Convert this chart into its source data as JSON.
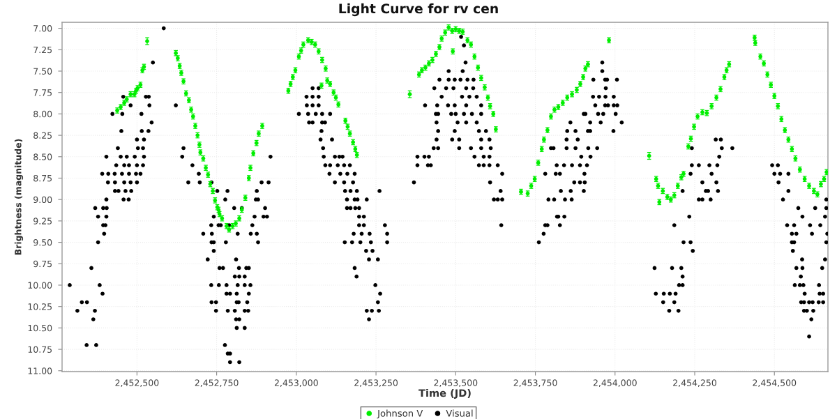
{
  "chart_data": {
    "type": "scatter",
    "title": "Light Curve for rv cen",
    "xlabel": "Time (JD)",
    "ylabel": "Brightness (magnitude)",
    "xlim": [
      2452265,
      2454668
    ],
    "ylim": [
      11.01,
      6.93
    ],
    "xticks": [
      {
        "value": 2452500,
        "label": "2,452,500"
      },
      {
        "value": 2452750,
        "label": "2,452,750"
      },
      {
        "value": 2453000,
        "label": "2,453,000"
      },
      {
        "value": 2453250,
        "label": "2,453,250"
      },
      {
        "value": 2453500,
        "label": "2,453,500"
      },
      {
        "value": 2453750,
        "label": "2,453,750"
      },
      {
        "value": 2454000,
        "label": "2,454,000"
      },
      {
        "value": 2454250,
        "label": "2,454,250"
      },
      {
        "value": 2454500,
        "label": "2,454,500"
      }
    ],
    "yticks": [
      {
        "value": 7.0,
        "label": "7.00"
      },
      {
        "value": 7.25,
        "label": "7.25"
      },
      {
        "value": 7.5,
        "label": "7.50"
      },
      {
        "value": 7.75,
        "label": "7.75"
      },
      {
        "value": 8.0,
        "label": "8.00"
      },
      {
        "value": 8.25,
        "label": "8.25"
      },
      {
        "value": 8.5,
        "label": "8.50"
      },
      {
        "value": 8.75,
        "label": "8.75"
      },
      {
        "value": 9.0,
        "label": "9.00"
      },
      {
        "value": 9.25,
        "label": "9.25"
      },
      {
        "value": 9.5,
        "label": "9.50"
      },
      {
        "value": 9.75,
        "label": "9.75"
      },
      {
        "value": 10.0,
        "label": "10.00"
      },
      {
        "value": 10.25,
        "label": "10.25"
      },
      {
        "value": 10.5,
        "label": "10.50"
      },
      {
        "value": 10.75,
        "label": "10.75"
      },
      {
        "value": 11.0,
        "label": "11.00"
      }
    ],
    "grid": true,
    "legend": "bottom",
    "marker": "circle",
    "series": [
      {
        "name": "Johnson V",
        "color": "#00ee00",
        "x": [
          2452438,
          2452449,
          2452460,
          2452468,
          2452480,
          2452492,
          2452497,
          2452502,
          2452511,
          2452517,
          2452522,
          2452532,
          2452622,
          2452628,
          2452634,
          2452639,
          2452646,
          2452654,
          2452663,
          2452670,
          2452676,
          2452683,
          2452690,
          2452696,
          2452699,
          2452708,
          2452716,
          2452723,
          2452730,
          2452738,
          2452745,
          2452752,
          2452756,
          2452759,
          2452767,
          2452781,
          2452789,
          2452800,
          2452810,
          2452821,
          2452829,
          2452840,
          2452851,
          2452856,
          2452865,
          2452875,
          2452882,
          2452893,
          2452975,
          2452982,
          2452989,
          2452997,
          2453008,
          2453015,
          2453022,
          2453037,
          2453048,
          2453059,
          2453070,
          2453079,
          2453081,
          2453092,
          2453097,
          2453106,
          2453117,
          2453124,
          2453132,
          2453154,
          2453161,
          2453168,
          2453178,
          2453185,
          2453190,
          2453356,
          2453385,
          2453394,
          2453405,
          2453416,
          2453427,
          2453438,
          2453449,
          2453456,
          2453467,
          2453478,
          2453489,
          2453491,
          2453500,
          2453511,
          2453522,
          2453537,
          2453548,
          2453559,
          2453570,
          2453580,
          2453591,
          2453601,
          2453608,
          2453618,
          2453626,
          2453705,
          2453726,
          2453737,
          2453748,
          2453759,
          2453770,
          2453777,
          2453788,
          2453799,
          2453810,
          2453822,
          2453836,
          2453850,
          2453865,
          2453880,
          2453891,
          2453900,
          2453907,
          2453915,
          2453981,
          2454107,
          2454129,
          2454135,
          2454139,
          2454150,
          2454164,
          2454175,
          2454186,
          2454197,
          2454208,
          2454215,
          2454230,
          2454238,
          2454248,
          2454259,
          2454274,
          2454288,
          2454303,
          2454318,
          2454331,
          2454343,
          2454350,
          2454358,
          2454438,
          2454440,
          2454456,
          2454467,
          2454478,
          2454489,
          2454500,
          2454511,
          2454522,
          2454533,
          2454544,
          2454555,
          2454566,
          2454580,
          2454595,
          2454609,
          2454624,
          2454635,
          2454646,
          2454656,
          2454664
        ],
        "values": [
          7.96,
          7.92,
          7.87,
          7.83,
          7.77,
          7.77,
          7.73,
          7.7,
          7.66,
          7.49,
          7.45,
          7.15,
          7.29,
          7.35,
          7.44,
          7.52,
          7.62,
          7.76,
          7.84,
          7.95,
          8.03,
          8.14,
          8.25,
          8.36,
          8.45,
          8.52,
          8.63,
          8.71,
          8.82,
          8.9,
          9.01,
          9.09,
          9.12,
          9.17,
          9.22,
          9.31,
          9.35,
          9.31,
          9.28,
          9.22,
          9.12,
          8.98,
          8.75,
          8.63,
          8.46,
          8.34,
          8.23,
          8.14,
          7.73,
          7.65,
          7.57,
          7.49,
          7.33,
          7.26,
          7.19,
          7.14,
          7.16,
          7.19,
          7.27,
          7.67,
          7.37,
          7.47,
          7.61,
          7.65,
          7.75,
          7.81,
          7.89,
          8.08,
          8.15,
          8.23,
          8.33,
          8.41,
          8.48,
          7.77,
          7.54,
          7.49,
          7.46,
          7.41,
          7.37,
          7.3,
          7.22,
          7.12,
          7.05,
          6.99,
          7.03,
          7.27,
          7.01,
          7.03,
          7.04,
          7.14,
          7.19,
          7.33,
          7.46,
          7.58,
          7.69,
          7.81,
          7.91,
          8.0,
          8.18,
          8.91,
          8.93,
          8.84,
          8.76,
          8.57,
          8.41,
          8.3,
          8.19,
          8.03,
          7.95,
          7.92,
          7.87,
          7.81,
          7.77,
          7.72,
          7.65,
          7.57,
          7.47,
          7.42,
          7.14,
          8.49,
          8.76,
          8.84,
          9.03,
          8.9,
          8.97,
          9.0,
          8.95,
          8.84,
          8.74,
          8.7,
          8.38,
          8.29,
          8.15,
          8.03,
          7.98,
          7.99,
          7.91,
          7.81,
          7.71,
          7.57,
          7.49,
          7.42,
          7.11,
          7.17,
          7.33,
          7.41,
          7.54,
          7.66,
          7.79,
          7.91,
          8.06,
          8.19,
          8.3,
          8.41,
          8.52,
          8.65,
          8.76,
          8.84,
          8.9,
          8.94,
          8.82,
          8.76,
          8.68
        ],
        "errors": [
          0.03,
          0.03,
          0.03,
          0.03,
          0.03,
          0.03,
          0.03,
          0.03,
          0.03,
          0.03,
          0.03,
          0.04,
          0.03,
          0.03,
          0.03,
          0.03,
          0.03,
          0.03,
          0.03,
          0.03,
          0.03,
          0.03,
          0.03,
          0.03,
          0.03,
          0.03,
          0.03,
          0.03,
          0.03,
          0.03,
          0.03,
          0.03,
          0.03,
          0.03,
          0.03,
          0.03,
          0.03,
          0.03,
          0.03,
          0.03,
          0.03,
          0.03,
          0.03,
          0.03,
          0.03,
          0.03,
          0.03,
          0.03,
          0.03,
          0.03,
          0.03,
          0.03,
          0.03,
          0.03,
          0.03,
          0.03,
          0.03,
          0.03,
          0.03,
          0.03,
          0.03,
          0.03,
          0.03,
          0.03,
          0.03,
          0.03,
          0.03,
          0.03,
          0.03,
          0.03,
          0.03,
          0.03,
          0.03,
          0.04,
          0.03,
          0.03,
          0.03,
          0.03,
          0.03,
          0.03,
          0.03,
          0.03,
          0.03,
          0.03,
          0.03,
          0.03,
          0.03,
          0.03,
          0.03,
          0.03,
          0.03,
          0.03,
          0.03,
          0.03,
          0.03,
          0.03,
          0.03,
          0.03,
          0.03,
          0.03,
          0.03,
          0.03,
          0.03,
          0.03,
          0.03,
          0.03,
          0.03,
          0.03,
          0.03,
          0.03,
          0.03,
          0.03,
          0.03,
          0.03,
          0.03,
          0.03,
          0.03,
          0.03,
          0.03,
          0.04,
          0.03,
          0.03,
          0.03,
          0.03,
          0.03,
          0.03,
          0.03,
          0.03,
          0.03,
          0.03,
          0.03,
          0.03,
          0.03,
          0.03,
          0.03,
          0.03,
          0.03,
          0.03,
          0.03,
          0.03,
          0.03,
          0.03,
          0.03,
          0.03,
          0.03,
          0.03,
          0.03,
          0.03,
          0.03,
          0.03,
          0.03,
          0.03,
          0.03,
          0.03,
          0.03,
          0.03,
          0.03,
          0.03,
          0.03,
          0.03,
          0.03,
          0.03,
          0.03
        ]
      },
      {
        "name": "Visual",
        "color": "#000000",
        "x": [
          2452289,
          2452313,
          2452327,
          2452342,
          2452343,
          2452357,
          2452363,
          2452368,
          2452369,
          2452372,
          2452378,
          2452378,
          2452383,
          2452391,
          2452392,
          2452394,
          2452394,
          2452397,
          2452401,
          2452404,
          2452404,
          2452404,
          2452405,
          2452409,
          2452410,
          2452423,
          2452430,
          2452431,
          2452431,
          2452435,
          2452440,
          2452442,
          2452449,
          2452451,
          2452453,
          2452454,
          2452457,
          2452458,
          2452460,
          2452460,
          2452464,
          2452468,
          2452474,
          2452475,
          2452475,
          2452480,
          2452480,
          2452482,
          2452493,
          2452497,
          2452500,
          2452500,
          2452500,
          2452503,
          2452511,
          2452514,
          2452515,
          2452519,
          2452519,
          2452522,
          2452522,
          2452528,
          2452536,
          2452537,
          2452539,
          2452546,
          2452550,
          2452584,
          2452622,
          2452642,
          2452646,
          2452661,
          2452674,
          2452694,
          2452697,
          2452708,
          2452722,
          2452733,
          2452733,
          2452734,
          2452734,
          2452734,
          2452735,
          2452741,
          2452741,
          2452741,
          2452748,
          2452748,
          2452752,
          2452756,
          2452757,
          2452759,
          2452763,
          2452770,
          2452776,
          2452777,
          2452779,
          2452781,
          2452781,
          2452784,
          2452785,
          2452785,
          2452789,
          2452792,
          2452792,
          2452792,
          2452805,
          2452807,
          2452807,
          2452811,
          2452811,
          2452813,
          2452813,
          2452813,
          2452816,
          2452816,
          2452819,
          2452820,
          2452821,
          2452821,
          2452821,
          2452829,
          2452838,
          2452838,
          2452838,
          2452838,
          2452843,
          2452846,
          2452849,
          2452851,
          2452851,
          2452856,
          2452857,
          2452862,
          2452869,
          2452873,
          2452876,
          2452876,
          2452880,
          2452880,
          2452891,
          2452897,
          2452902,
          2452908,
          2452913,
          2452919,
          2453008,
          2453032,
          2453033,
          2453037,
          2453040,
          2453051,
          2453051,
          2453051,
          2453051,
          2453061,
          2453070,
          2453070,
          2453070,
          2453076,
          2453079,
          2453081,
          2453081,
          2453084,
          2453086,
          2453090,
          2453091,
          2453104,
          2453106,
          2453106,
          2453112,
          2453121,
          2453121,
          2453130,
          2453135,
          2453138,
          2453145,
          2453150,
          2453150,
          2453152,
          2453153,
          2453159,
          2453159,
          2453160,
          2453168,
          2453170,
          2453170,
          2453175,
          2453178,
          2453180,
          2453183,
          2453183,
          2453183,
          2453185,
          2453189,
          2453190,
          2453192,
          2453197,
          2453197,
          2453197,
          2453201,
          2453205,
          2453212,
          2453212,
          2453219,
          2453221,
          2453221,
          2453228,
          2453228,
          2453230,
          2453234,
          2453237,
          2453239,
          2453248,
          2453256,
          2453256,
          2453259,
          2453261,
          2453263,
          2453278,
          2453285,
          2453285,
          2453369,
          2453380,
          2453380,
          2453402,
          2453404,
          2453413,
          2453416,
          2453422,
          2453431,
          2453433,
          2453438,
          2453440,
          2453440,
          2453442,
          2453445,
          2453445,
          2453445,
          2453449,
          2453456,
          2453470,
          2453476,
          2453478,
          2453478,
          2453486,
          2453489,
          2453493,
          2453497,
          2453497,
          2453497,
          2453500,
          2453506,
          2453511,
          2453511,
          2453515,
          2453517,
          2453520,
          2453522,
          2453526,
          2453526,
          2453531,
          2453533,
          2453533,
          2453533,
          2453537,
          2453543,
          2453548,
          2453551,
          2453555,
          2453556,
          2453559,
          2453566,
          2453566,
          2453573,
          2453573,
          2453580,
          2453580,
          2453580,
          2453580,
          2453588,
          2453588,
          2453595,
          2453606,
          2453606,
          2453606,
          2453608,
          2453610,
          2453620,
          2453632,
          2453632,
          2453641,
          2453643,
          2453646,
          2453646,
          2453761,
          2453776,
          2453781,
          2453781,
          2453788,
          2453791,
          2453799,
          2453807,
          2453809,
          2453814,
          2453817,
          2453818,
          2453822,
          2453827,
          2453827,
          2453830,
          2453840,
          2453841,
          2453843,
          2453848,
          2453848,
          2453850,
          2453860,
          2453861,
          2453864,
          2453865,
          2453872,
          2453876,
          2453876,
          2453883,
          2453890,
          2453890,
          2453894,
          2453902,
          2453902,
          2453904,
          2453905,
          2453907,
          2453912,
          2453915,
          2453916,
          2453922,
          2453922,
          2453923,
          2453931,
          2453932,
          2453938,
          2453944,
          2453947,
          2453950,
          2453955,
          2453960,
          2453960,
          2453963,
          2453969,
          2453969,
          2453970,
          2453971,
          2453975,
          2453978,
          2453995,
          2453996,
          2453996,
          2454002,
          2454006,
          2454007,
          2454021,
          2454124,
          2454128,
          2454151,
          2454153,
          2454170,
          2454172,
          2454179,
          2454186,
          2454186,
          2454190,
          2454199,
          2454201,
          2454208,
          2454212,
          2454212,
          2454212,
          2454215,
          2454233,
          2454237,
          2454237,
          2454241,
          2454241,
          2454244,
          2454263,
          2454263,
          2454274,
          2454274,
          2454285,
          2454292,
          2454296,
          2454300,
          2454303,
          2454316,
          2454318,
          2454321,
          2454323,
          2454327,
          2454332,
          2454335,
          2454368,
          2454493,
          2454500,
          2454511,
          2454513,
          2454518,
          2454527,
          2454540,
          2454544,
          2454544,
          2454555,
          2454555,
          2454558,
          2454562,
          2454562,
          2454564,
          2454569,
          2454569,
          2454575,
          2454580,
          2454583,
          2454584,
          2454587,
          2454588,
          2454588,
          2454591,
          2454593,
          2454593,
          2454595,
          2454602,
          2454609,
          2454609,
          2454612,
          2454616,
          2454618,
          2454620,
          2454622,
          2454628,
          2454639,
          2454640,
          2454642,
          2454644,
          2454650,
          2454653,
          2454653,
          2454659,
          2454659,
          2454663,
          2454663,
          2454663,
          2454666
        ],
        "values": [
          10.0,
          10.3,
          10.2,
          10.7,
          10.2,
          9.8,
          10.4,
          10.3,
          9.1,
          10.7,
          9.2,
          9.5,
          10.0,
          8.7,
          10.1,
          9.3,
          9.1,
          9.4,
          9.3,
          9.0,
          9.2,
          8.5,
          9.1,
          8.8,
          8.7,
          8.0,
          8.7,
          8.8,
          8.9,
          8.6,
          8.4,
          8.9,
          8.5,
          8.2,
          8.7,
          8.0,
          7.8,
          9.0,
          8.8,
          8.6,
          8.9,
          8.5,
          9.0,
          8.7,
          8.6,
          7.9,
          8.8,
          8.9,
          8.5,
          8.7,
          8.6,
          8.8,
          8.3,
          8.4,
          8.7,
          8.0,
          8.2,
          8.4,
          8.6,
          8.3,
          8.5,
          7.8,
          8.2,
          7.8,
          7.9,
          8.1,
          7.4,
          7.0,
          7.9,
          8.5,
          8.4,
          8.8,
          8.6,
          8.7,
          8.8,
          9.4,
          9.7,
          10.0,
          9.3,
          8.8,
          9.5,
          10.2,
          9.4,
          9.2,
          9.5,
          9.6,
          10.2,
          10.3,
          8.9,
          9.3,
          10.0,
          9.8,
          9.3,
          9.8,
          10.7,
          9.0,
          9.5,
          10.0,
          10.1,
          8.9,
          10.3,
          10.8,
          9.3,
          10.1,
          10.8,
          10.9,
          9.1,
          9.9,
          10.3,
          9.7,
          10.4,
          10.1,
          10.2,
          10.5,
          9.4,
          10.0,
          10.2,
          9.8,
          9.9,
          10.4,
          10.9,
          9.1,
          9.9,
          10.0,
          10.3,
          10.5,
          9.8,
          10.2,
          10.3,
          9.8,
          10.1,
          10.0,
          9.4,
          9.3,
          9.2,
          9.0,
          8.9,
          9.4,
          9.0,
          9.5,
          8.8,
          9.2,
          9.1,
          9.2,
          8.8,
          8.5,
          8.0,
          7.8,
          7.9,
          8.0,
          8.1,
          7.7,
          7.8,
          7.9,
          8.1,
          8.0,
          7.7,
          7.8,
          7.9,
          8.3,
          8.2,
          8.0,
          8.1,
          8.4,
          8.5,
          8.1,
          8.6,
          8.7,
          8.0,
          8.6,
          8.3,
          8.5,
          8.8,
          8.6,
          8.5,
          8.7,
          8.5,
          8.8,
          8.6,
          9.5,
          8.9,
          9.0,
          9.1,
          8.7,
          8.6,
          9.1,
          8.9,
          9.5,
          8.8,
          9.4,
          8.7,
          9.0,
          9.8,
          9.1,
          9.9,
          8.9,
          9.0,
          9.1,
          9.2,
          9.3,
          9.5,
          9.4,
          9.2,
          9.3,
          9.6,
          9.0,
          10.3,
          9.7,
          10.4,
          9.4,
          9.5,
          10.3,
          9.6,
          10.0,
          9.7,
          10.2,
          10.3,
          8.9,
          10.1,
          9.3,
          9.4,
          9.5,
          8.8,
          8.5,
          8.6,
          8.5,
          7.9,
          8.6,
          8.5,
          8.6,
          8.4,
          7.7,
          8.0,
          8.1,
          8.3,
          7.9,
          8.0,
          8.2,
          8.4,
          7.6,
          7.8,
          7.7,
          7.9,
          7.5,
          7.6,
          8.0,
          8.3,
          7.7,
          7.6,
          7.9,
          8.2,
          8.0,
          8.1,
          8.3,
          8.4,
          7.6,
          7.1,
          7.8,
          7.5,
          7.2,
          8.0,
          7.4,
          7.7,
          7.9,
          8.1,
          7.6,
          7.8,
          8.4,
          8.0,
          7.7,
          7.6,
          8.5,
          7.8,
          8.1,
          8.2,
          8.6,
          7.9,
          8.0,
          8.3,
          8.4,
          8.5,
          8.6,
          8.2,
          8.3,
          8.5,
          8.6,
          8.8,
          8.4,
          9.0,
          8.6,
          9.0,
          8.9,
          9.3,
          8.7,
          9.0,
          9.5,
          9.4,
          9.3,
          8.7,
          9.3,
          9.0,
          8.4,
          8.4,
          9.0,
          8.7,
          8.6,
          9.2,
          9.2,
          8.7,
          9.3,
          8.9,
          8.6,
          9.2,
          9.0,
          8.3,
          8.4,
          8.2,
          8.1,
          8.9,
          9.0,
          8.6,
          8.8,
          8.2,
          8.4,
          8.3,
          8.8,
          8.6,
          8.5,
          8.0,
          8.9,
          8.7,
          8.8,
          8.0,
          8.6,
          8.2,
          8.4,
          8.1,
          8.2,
          8.5,
          7.8,
          7.6,
          7.9,
          8.4,
          8.0,
          7.8,
          8.1,
          7.4,
          7.5,
          8.0,
          7.6,
          7.9,
          7.8,
          7.7,
          7.6,
          7.9,
          8.2,
          7.8,
          7.9,
          8.0,
          7.6,
          7.9,
          8.1,
          9.8,
          10.1,
          10.2,
          10.1,
          10.3,
          10.1,
          9.8,
          10.2,
          9.3,
          10.1,
          10.3,
          10.0,
          9.8,
          9.9,
          10.0,
          8.9,
          9.5,
          9.2,
          8.7,
          9.5,
          8.4,
          8.6,
          9.6,
          8.6,
          9.0,
          8.8,
          9.0,
          8.9,
          8.9,
          8.6,
          9.0,
          8.7,
          8.3,
          8.8,
          8.6,
          8.9,
          8.5,
          8.3,
          8.4,
          8.4,
          8.6,
          8.7,
          8.6,
          8.8,
          8.7,
          9.0,
          9.3,
          8.7,
          8.9,
          9.4,
          9.5,
          9.6,
          9.3,
          9.5,
          10.0,
          9.4,
          9.8,
          9.1,
          10.0,
          9.9,
          10.2,
          9.7,
          9.2,
          9.8,
          10.0,
          10.2,
          10.3,
          10.1,
          10.3,
          10.2,
          10.6,
          9.3,
          10.4,
          9.4,
          10.2,
          10.3,
          9.1,
          10.2,
          10.0,
          10.1,
          9.3,
          9.8,
          10.1,
          10.2,
          9.2,
          9.7,
          9.0,
          9.1,
          9.5,
          9.4
        ]
      }
    ]
  }
}
